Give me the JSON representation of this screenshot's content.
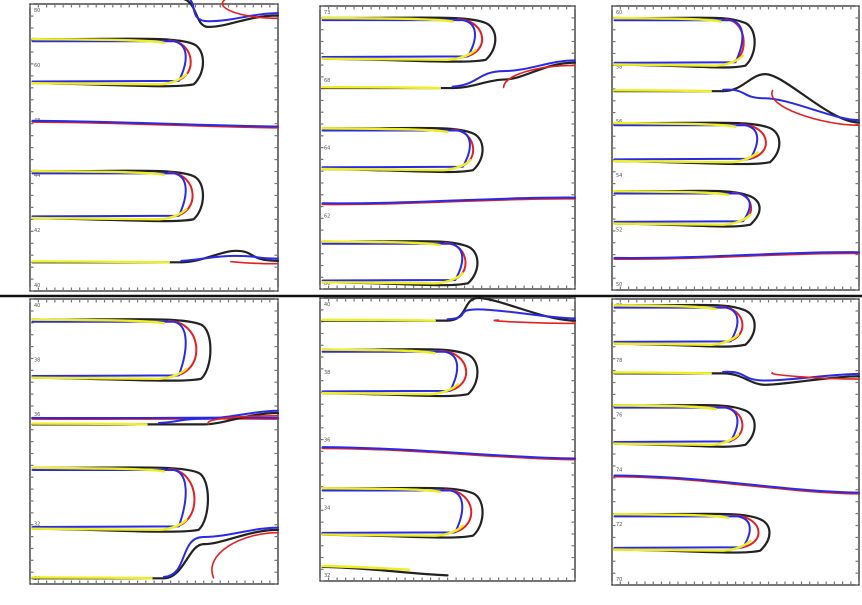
{
  "chart_data": {
    "type": "line",
    "title": "",
    "xlabel": "",
    "ylabel": "",
    "grid": false,
    "legend": "none",
    "layout": {
      "rows": 2,
      "cols": 3
    },
    "colors": {
      "black": "#222222",
      "yellow": "#eeee22",
      "blue": "#2a2ae6",
      "red": "#e22222",
      "frame": "#3a3a3a",
      "divider": "#111111"
    },
    "panels": [
      {
        "id": "top-left",
        "xlim": [
          0,
          100
        ],
        "ylim": [
          0,
          100
        ],
        "ytick_labels": [
          "80",
          "60",
          "48",
          "44",
          "42",
          "40"
        ],
        "curves": [
          {
            "kind": "hairpin",
            "y_upper": 87,
            "y_lower": 73,
            "x_tip": 62,
            "x_red": 67,
            "x_black": 70
          },
          {
            "kind": "hairpin",
            "y_upper": 41,
            "y_lower": 26,
            "x_tip": 62,
            "x_red": 68,
            "x_black": 70
          },
          {
            "kind": "straight",
            "y_start": 59,
            "y_end": 57
          },
          {
            "kind": "bifurcation",
            "x_start": 61,
            "x_end": 100,
            "y_start": 10,
            "y_end": 10.5,
            "y_peak": 14,
            "x_peak": 83
          },
          {
            "kind": "bifurcation",
            "x_start": 60,
            "x_end": 100,
            "y_start": 102,
            "y_end": 96,
            "y_peak": 92,
            "x_peak": 72
          }
        ]
      },
      {
        "id": "top-middle",
        "xlim": [
          0,
          100
        ],
        "ylim": [
          0,
          100
        ],
        "ytick_labels": [
          "73",
          "68",
          "64",
          "62",
          "60"
        ],
        "curves": [
          {
            "kind": "hairpin",
            "y_upper": 95,
            "y_lower": 82,
            "x_tip": 60,
            "x_red": 66,
            "x_black": 69
          },
          {
            "kind": "hairpin",
            "y_upper": 56,
            "y_lower": 43,
            "x_tip": 58,
            "x_red": 62,
            "x_black": 64
          },
          {
            "kind": "hairpin",
            "y_upper": 16,
            "y_lower": 3,
            "x_tip": 55,
            "x_red": 59,
            "x_black": 62
          },
          {
            "kind": "straight",
            "y_start": 30,
            "y_end": 32
          },
          {
            "kind": "bifurcation",
            "x_start": 52,
            "x_end": 100,
            "y_start": 71,
            "y_end": 80,
            "y_peak": 74,
            "x_peak": 72
          }
        ]
      },
      {
        "id": "top-right",
        "xlim": [
          0,
          100
        ],
        "ylim": [
          0,
          100
        ],
        "ytick_labels": [
          "60",
          "58",
          "56",
          "54",
          "52",
          "50"
        ],
        "curves": [
          {
            "kind": "hairpin",
            "y_upper": 95,
            "y_lower": 80,
            "x_tip": 52,
            "x_red": 55,
            "x_black": 58
          },
          {
            "kind": "hairpin",
            "y_upper": 58,
            "y_lower": 46,
            "x_tip": 58,
            "x_red": 65,
            "x_black": 68
          },
          {
            "kind": "hairpin",
            "y_upper": 34,
            "y_lower": 24,
            "x_tip": 55,
            "x_red": 58,
            "x_black": 60
          },
          {
            "kind": "straight",
            "y_start": 11,
            "y_end": 13
          },
          {
            "kind": "bifurcation",
            "x_start": 45,
            "x_end": 100,
            "y_start": 70,
            "y_end": 59,
            "y_peak": 76,
            "x_peak": 62
          }
        ]
      },
      {
        "id": "bottom-left",
        "xlim": [
          0,
          100
        ],
        "ylim": [
          0,
          100
        ],
        "ytick_labels": [
          "40",
          "38",
          "36",
          "34",
          "32",
          "30"
        ],
        "curves": [
          {
            "kind": "hairpin",
            "y_upper": 92,
            "y_lower": 73,
            "x_tip": 62,
            "x_red": 70,
            "x_black": 73
          },
          {
            "kind": "hairpin",
            "y_upper": 40,
            "y_lower": 20,
            "x_tip": 62,
            "x_red": 69,
            "x_black": 72
          },
          {
            "kind": "straight",
            "y_start": 58,
            "y_end": 58
          },
          {
            "kind": "bifurcation",
            "x_start": 52,
            "x_end": 100,
            "y_start": 56,
            "y_end": 60,
            "y_peak": 56,
            "x_peak": 70
          },
          {
            "kind": "bifurcation",
            "x_start": 54,
            "x_end": 100,
            "y_start": 2,
            "y_end": 19,
            "y_peak": 14,
            "x_peak": 70
          }
        ]
      },
      {
        "id": "bottom-middle",
        "xlim": [
          0,
          100
        ],
        "ylim": [
          0,
          100
        ],
        "ytick_labels": [
          "40",
          "38",
          "36",
          "34",
          "32"
        ],
        "curves": [
          {
            "kind": "hairpin",
            "y_upper": 81,
            "y_lower": 67,
            "x_tip": 53,
            "x_red": 60,
            "x_black": 62
          },
          {
            "kind": "hairpin",
            "y_upper": 32,
            "y_lower": 17,
            "x_tip": 55,
            "x_red": 62,
            "x_black": 64
          },
          {
            "kind": "straight",
            "y_start": 47,
            "y_end": 43
          },
          {
            "kind": "bifurcation",
            "x_start": 50,
            "x_end": 100,
            "y_start": 92,
            "y_end": 92,
            "y_peak": 100,
            "x_peak": 62
          },
          {
            "kind": "tail",
            "y_start": 5,
            "y_end": 2,
            "x_end": 50
          }
        ]
      },
      {
        "id": "bottom-right",
        "xlim": [
          0,
          100
        ],
        "ylim": [
          0,
          100
        ],
        "ytick_labels": [
          "80",
          "78",
          "76",
          "74",
          "72",
          "70"
        ],
        "curves": [
          {
            "kind": "hairpin",
            "y_upper": 97,
            "y_lower": 85,
            "x_tip": 50,
            "x_red": 55,
            "x_black": 58
          },
          {
            "kind": "hairpin",
            "y_upper": 62,
            "y_lower": 50,
            "x_tip": 50,
            "x_red": 55,
            "x_black": 58
          },
          {
            "kind": "hairpin",
            "y_upper": 24,
            "y_lower": 13,
            "x_tip": 55,
            "x_red": 62,
            "x_black": 64
          },
          {
            "kind": "straight",
            "y_start": 38,
            "y_end": 32
          },
          {
            "kind": "bifurcation",
            "x_start": 45,
            "x_end": 100,
            "y_start": 74,
            "y_end": 73,
            "y_peak": 70,
            "x_peak": 62
          }
        ]
      }
    ]
  }
}
